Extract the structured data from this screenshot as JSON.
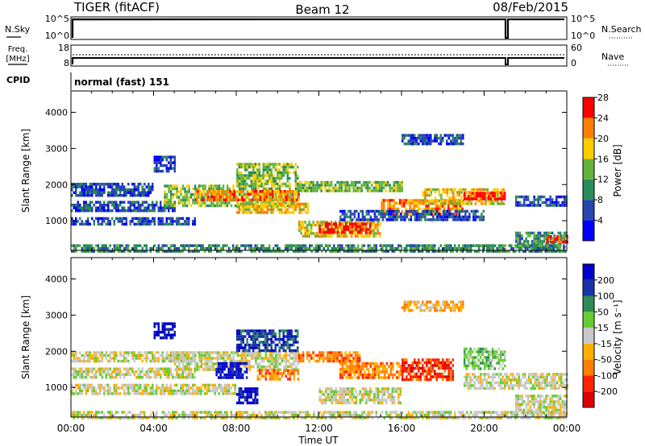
{
  "header": {
    "station": "TIGER (fitACF)",
    "beam": "Beam 12",
    "date": "08/Feb/2015"
  },
  "noise_panel": {
    "left_label": "N.Sky",
    "right_label": "N.Search",
    "left_ticks": [
      "10^5",
      "10^0"
    ],
    "right_ticks": [
      "10^5",
      "10^0"
    ]
  },
  "freq_panel": {
    "left_label_line1": "Freq.",
    "left_label_line2": "[MHz]",
    "right_label": "Nave",
    "left_ticks": [
      "18",
      "8"
    ],
    "right_ticks": [
      "60",
      "0"
    ]
  },
  "cpid_panel": {
    "label": "CPID",
    "value": "normal (fast) 151"
  },
  "chart_data": [
    {
      "type": "heatmap",
      "name": "power",
      "ylabel": "Slant Range [km]",
      "ylim": [
        180,
        4590
      ],
      "yticks": [
        "1000",
        "2000",
        "3000",
        "4000"
      ],
      "colorbar_label": "Power [dB]",
      "colorbar_ticks": [
        "4",
        "8",
        "12",
        "16",
        "20",
        "24",
        "28"
      ],
      "colors": [
        "#0000ff",
        "#2846b0",
        "#2a8c5a",
        "#64b43c",
        "#ffcc00",
        "#ff7f00",
        "#ff0000"
      ],
      "x_hours": [
        0,
        24
      ],
      "bands": [
        {
          "t0": 0,
          "t1": 4,
          "r0": 1700,
          "r1": 2050,
          "level": 1
        },
        {
          "t0": 0,
          "t1": 5,
          "r0": 1300,
          "r1": 1550,
          "level": 1
        },
        {
          "t0": 0,
          "t1": 6,
          "r0": 900,
          "r1": 1100,
          "level": 1
        },
        {
          "t0": 4.5,
          "t1": 11,
          "r0": 1400,
          "r1": 2000,
          "level": 3
        },
        {
          "t0": 6,
          "t1": 11,
          "r0": 1550,
          "r1": 1850,
          "level": 5
        },
        {
          "t0": 8,
          "t1": 11.5,
          "r0": 1200,
          "r1": 1500,
          "level": 4
        },
        {
          "t0": 11,
          "t1": 16,
          "r0": 1800,
          "r1": 2100,
          "level": 3
        },
        {
          "t0": 11,
          "t1": 15,
          "r0": 600,
          "r1": 1000,
          "level": 4
        },
        {
          "t0": 12,
          "t1": 14.5,
          "r0": 700,
          "r1": 950,
          "level": 6
        },
        {
          "t0": 15,
          "t1": 19,
          "r0": 1200,
          "r1": 1600,
          "level": 5
        },
        {
          "t0": 17,
          "t1": 21,
          "r0": 1500,
          "r1": 1900,
          "level": 4
        },
        {
          "t0": 19,
          "t1": 21,
          "r0": 1600,
          "r1": 1800,
          "level": 6
        },
        {
          "t0": 13,
          "t1": 20,
          "r0": 1050,
          "r1": 1300,
          "level": 1
        },
        {
          "t0": 21.5,
          "t1": 24,
          "r0": 1400,
          "r1": 1700,
          "level": 1
        },
        {
          "t0": 21.5,
          "t1": 24,
          "r0": 300,
          "r1": 700,
          "level": 2
        },
        {
          "t0": 23,
          "t1": 24,
          "r0": 400,
          "r1": 600,
          "level": 6
        },
        {
          "t0": 8,
          "t1": 11,
          "r0": 2000,
          "r1": 2600,
          "level": 3
        },
        {
          "t0": 4,
          "t1": 5,
          "r0": 2400,
          "r1": 2800,
          "level": 1
        },
        {
          "t0": 16,
          "t1": 19,
          "r0": 3100,
          "r1": 3400,
          "level": 1
        },
        {
          "t0": 0,
          "t1": 24,
          "r0": 180,
          "r1": 350,
          "level": 2
        }
      ]
    },
    {
      "type": "heatmap",
      "name": "velocity",
      "ylabel": "Slant Range [km]",
      "xlabel": "Time UT",
      "ylim": [
        180,
        4590
      ],
      "yticks": [
        "1000",
        "2000",
        "3000",
        "4000"
      ],
      "xticks": [
        "00:00",
        "04:00",
        "08:00",
        "12:00",
        "16:00",
        "20:00",
        "00:00"
      ],
      "colorbar_label": "Velocity [m s⁻¹]",
      "colorbar_ticks": [
        "200",
        "100",
        "50",
        "15",
        "-15",
        "-50",
        "-100",
        "-200"
      ],
      "colors": [
        "#0000cc",
        "#1a33a6",
        "#2e8b57",
        "#66cc33",
        "#c8c8c8",
        "#ffb000",
        "#ff7f00",
        "#ff2200",
        "#dd0000"
      ],
      "x_hours": [
        0,
        24
      ],
      "bands": [
        {
          "t0": 0,
          "t1": 6,
          "r0": 1700,
          "r1": 2000,
          "level": 4
        },
        {
          "t0": 0,
          "t1": 6,
          "r0": 1250,
          "r1": 1550,
          "level": 4
        },
        {
          "t0": 0,
          "t1": 8,
          "r0": 800,
          "r1": 1100,
          "level": 4
        },
        {
          "t0": 5,
          "t1": 11,
          "r0": 1500,
          "r1": 2000,
          "level": 4
        },
        {
          "t0": 7,
          "t1": 8.5,
          "r0": 1300,
          "r1": 1700,
          "level": 0
        },
        {
          "t0": 9,
          "t1": 11,
          "r0": 1200,
          "r1": 1500,
          "level": 6
        },
        {
          "t0": 11,
          "t1": 14,
          "r0": 1700,
          "r1": 2000,
          "level": 6
        },
        {
          "t0": 13,
          "t1": 16,
          "r0": 1300,
          "r1": 1700,
          "level": 6
        },
        {
          "t0": 16,
          "t1": 18.5,
          "r0": 1200,
          "r1": 1800,
          "level": 7
        },
        {
          "t0": 19,
          "t1": 21,
          "r0": 1500,
          "r1": 2100,
          "level": 3
        },
        {
          "t0": 19,
          "t1": 24,
          "r0": 1000,
          "r1": 1400,
          "level": 4
        },
        {
          "t0": 12,
          "t1": 16,
          "r0": 600,
          "r1": 1000,
          "level": 4
        },
        {
          "t0": 8,
          "t1": 9,
          "r0": 600,
          "r1": 1000,
          "level": 0
        },
        {
          "t0": 4,
          "t1": 5,
          "r0": 2400,
          "r1": 2800,
          "level": 0
        },
        {
          "t0": 8,
          "t1": 11,
          "r0": 2000,
          "r1": 2600,
          "level": 1
        },
        {
          "t0": 16,
          "t1": 19,
          "r0": 3100,
          "r1": 3400,
          "level": 5
        },
        {
          "t0": 21.5,
          "t1": 24,
          "r0": 300,
          "r1": 800,
          "level": 4
        },
        {
          "t0": 0,
          "t1": 24,
          "r0": 180,
          "r1": 350,
          "level": 4
        }
      ]
    }
  ]
}
